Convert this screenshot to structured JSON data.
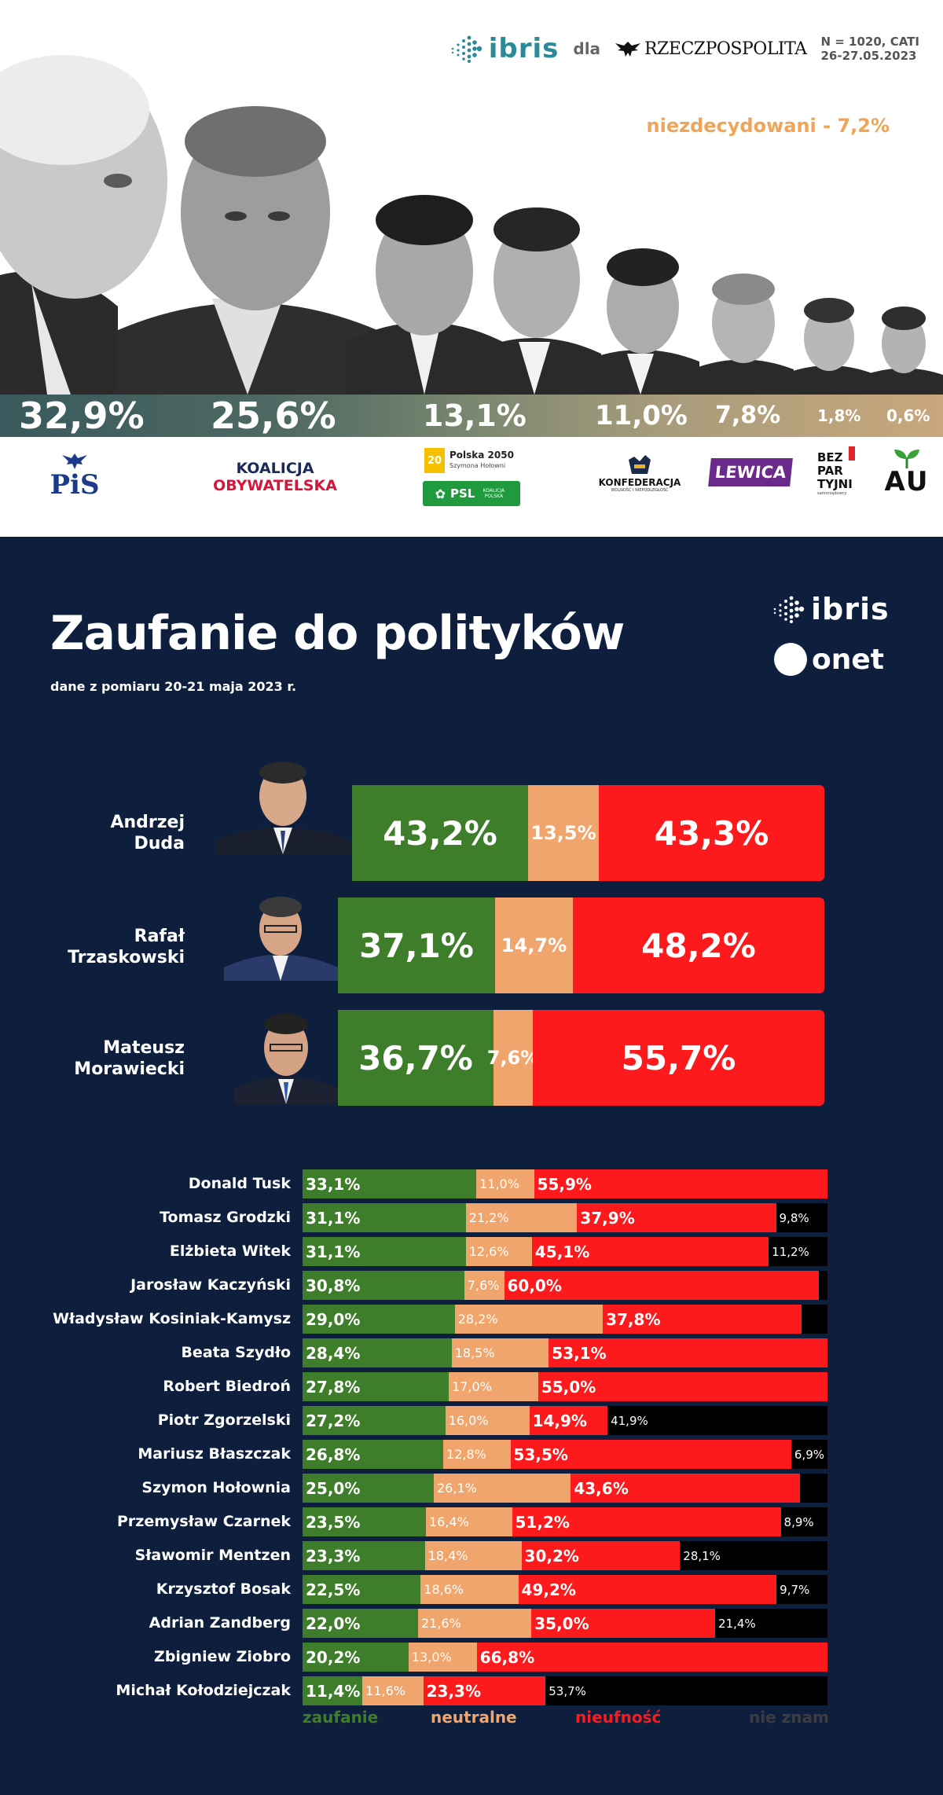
{
  "poll": {
    "brand": "ibris",
    "dla": "dla",
    "paper": "RZECZPOSPOLITA",
    "meta_line1": "N = 1020, CATI",
    "meta_line2": "26-27.05.2023",
    "undecided": "niezdecydowani - 7,2%",
    "results": [
      {
        "value": 32.9,
        "label": "32,9%"
      },
      {
        "value": 25.6,
        "label": "25,6%"
      },
      {
        "value": 13.1,
        "label": "13,1%"
      },
      {
        "value": 11.0,
        "label": "11,0%"
      },
      {
        "value": 7.8,
        "label": "7,8%"
      },
      {
        "value": 1.8,
        "label": "1,8%"
      },
      {
        "value": 0.6,
        "label": "0,6%"
      }
    ],
    "parties": {
      "pis": "PiS",
      "ko_line1": "KOALICJA",
      "ko_line2": "OBYWATELSKA",
      "p2050_line1": "Polska 2050",
      "p2050_line2": "Szymona Hołowni",
      "psl": "PSL",
      "psl_sub": "KOALICJA POLSKA",
      "konf": "KONFEDERACJA",
      "konf_sub": "WOLNOŚĆ I NIEPODLEGŁOŚĆ",
      "lewica": "LEWICA",
      "bp_line1": "BEZ",
      "bp_line2": "PAR",
      "bp_line3": "TYJNI",
      "bp_sub": "samorządowcy",
      "agro": "AU"
    }
  },
  "trust": {
    "title": "Zaufanie do polityków",
    "subtitle": "dane z pomiaru 20-21 maja 2023 r.",
    "brand": "ibris",
    "partner": "onet",
    "top3": [
      {
        "name1": "Andrzej",
        "name2": "Duda",
        "trust": "43,2%",
        "neutral": "13,5%",
        "distrust": "43,3%"
      },
      {
        "name1": "Rafał",
        "name2": "Trzaskowski",
        "trust": "37,1%",
        "neutral": "14,7%",
        "distrust": "48,2%"
      },
      {
        "name1": "Mateusz",
        "name2": "Morawiecki",
        "trust": "36,7%",
        "neutral": "7,6%",
        "distrust": "55,7%"
      }
    ],
    "legend": {
      "trust": "zaufanie",
      "neutral": "neutralne",
      "distrust": "nieufność",
      "unknown": "nie znam"
    },
    "colors": {
      "trust": "#3e7d2a",
      "neutral": "#efa56b",
      "distrust": "#fc1a1c",
      "unknown": "#000000",
      "bg": "#0e1f3e"
    }
  },
  "chart_data": [
    {
      "type": "bar",
      "categories": [
        "Andrzej Duda",
        "Rafał Trzaskowski",
        "Mateusz Morawiecki"
      ],
      "series": [
        {
          "name": "zaufanie",
          "values": [
            43.2,
            37.1,
            36.7
          ]
        },
        {
          "name": "neutralne",
          "values": [
            13.5,
            14.7,
            7.6
          ]
        },
        {
          "name": "nieufność",
          "values": [
            43.3,
            48.2,
            55.7
          ]
        }
      ]
    },
    {
      "type": "bar",
      "categories": [
        "Donald Tusk",
        "Tomasz Grodzki",
        "Elżbieta Witek",
        "Jarosław Kaczyński",
        "Władysław Kosiniak-Kamysz",
        "Beata Szydło",
        "Robert Biedroń",
        "Piotr Zgorzelski",
        "Mariusz Błaszczak",
        "Szymon Hołownia",
        "Przemysław Czarnek",
        "Sławomir Mentzen",
        "Krzysztof Bosak",
        "Adrian Zandberg",
        "Zbigniew Ziobro",
        "Michał Kołodziejczak"
      ],
      "series": [
        {
          "name": "zaufanie",
          "values": [
            33.1,
            31.1,
            31.1,
            30.8,
            29.0,
            28.4,
            27.8,
            27.2,
            26.8,
            25.0,
            23.5,
            23.3,
            22.5,
            22.0,
            20.2,
            11.4
          ]
        },
        {
          "name": "neutralne",
          "values": [
            11.0,
            21.2,
            12.6,
            7.6,
            28.2,
            18.5,
            17.0,
            16.0,
            12.8,
            26.1,
            16.4,
            18.4,
            18.6,
            21.6,
            13.0,
            11.6
          ]
        },
        {
          "name": "nieufność",
          "values": [
            55.9,
            37.9,
            45.1,
            60.0,
            37.8,
            53.1,
            55.0,
            14.9,
            53.5,
            43.6,
            51.2,
            30.2,
            49.2,
            35.0,
            66.8,
            23.3
          ]
        },
        {
          "name": "nie znam",
          "values": [
            0,
            9.8,
            11.2,
            1.6,
            5.0,
            0,
            0,
            41.9,
            6.9,
            5.3,
            8.9,
            28.1,
            9.7,
            21.4,
            0,
            53.7
          ]
        }
      ],
      "labels": {
        "trust": [
          "33,1%",
          "31,1%",
          "31,1%",
          "30,8%",
          "29,0%",
          "28,4%",
          "27,8%",
          "27,2%",
          "26,8%",
          "25,0%",
          "23,5%",
          "23,3%",
          "22,5%",
          "22,0%",
          "20,2%",
          "11,4%"
        ],
        "neutral": [
          "11,0%",
          "21,2%",
          "12,6%",
          "7,6%",
          "28,2%",
          "18,5%",
          "17,0%",
          "16,0%",
          "12,8%",
          "26,1%",
          "16,4%",
          "18,4%",
          "18,6%",
          "21,6%",
          "13,0%",
          "11,6%"
        ],
        "distrust": [
          "55,9%",
          "37,9%",
          "45,1%",
          "60,0%",
          "37,8%",
          "53,1%",
          "55,0%",
          "14,9%",
          "53,5%",
          "43,6%",
          "51,2%",
          "30,2%",
          "49,2%",
          "35,0%",
          "66,8%",
          "23,3%"
        ],
        "unknown": [
          "",
          "9,8%",
          "11,2%",
          "",
          "",
          "",
          "",
          "41,9%",
          "6,9%",
          "",
          "8,9%",
          "28,1%",
          "9,7%",
          "21,4%",
          "",
          "53,7%"
        ]
      }
    }
  ]
}
